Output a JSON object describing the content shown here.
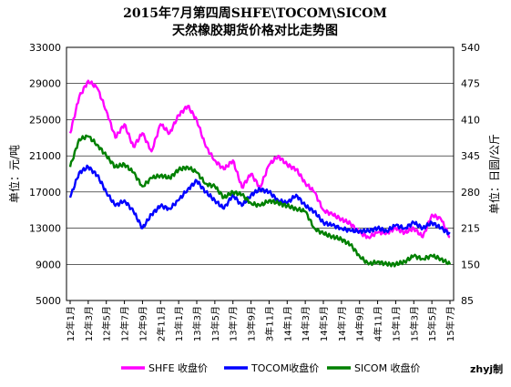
{
  "chart_data": {
    "type": "line",
    "title": "2015年7月第四周SHFE\\TOCOM\\SICOM",
    "subtitle": "天然橡胶期货价格对比走势图",
    "ylabel_left": "单位：元/吨",
    "ylabel_right": "单位：日圆/公斤",
    "ylim_left": [
      5000,
      33000
    ],
    "yticks_left": [
      "5000",
      "9000",
      "13000",
      "17000",
      "21000",
      "25000",
      "29000",
      "33000"
    ],
    "ylim_right": [
      85,
      540
    ],
    "yticks_right": [
      "85",
      "150",
      "215",
      "280",
      "345",
      "410",
      "475",
      "540"
    ],
    "x_categories": [
      "12年1月",
      "12年3月",
      "12年5月",
      "12年7月",
      "12年9月",
      "2年11月",
      "13年1月",
      "13年3月",
      "13年5月",
      "13年7月",
      "13年9月",
      "3年11月",
      "14年1月",
      "14年3月",
      "14年5月",
      "14年7月",
      "14年9月",
      "4年11月",
      "15年1月",
      "15年3月",
      "15年5月",
      "15年7月"
    ],
    "grid": true,
    "legend_position": "bottom",
    "series": [
      {
        "name": "SHFE 收盘价",
        "axis": "left",
        "color": "#ff00ff",
        "x": [
          0,
          0.5,
          1,
          1.5,
          2,
          2.5,
          3,
          3.5,
          4,
          4.5,
          5,
          5.5,
          6,
          6.5,
          7,
          7.5,
          8,
          8.5,
          9,
          9.5,
          10,
          10.5,
          11,
          11.5,
          12,
          12.5,
          13,
          13.5,
          14,
          14.5,
          15,
          15.5,
          16,
          16.5,
          17,
          17.5,
          18,
          18.5,
          19,
          19.5,
          20,
          20.5,
          21
        ],
        "values": [
          23500,
          27500,
          29300,
          28500,
          26000,
          23000,
          24500,
          22000,
          23500,
          21500,
          24500,
          23500,
          25500,
          26500,
          25000,
          22000,
          20500,
          19500,
          20500,
          17500,
          19000,
          17500,
          20000,
          21000,
          20000,
          19500,
          18000,
          17000,
          15000,
          14500,
          14000,
          13500,
          12500,
          12000,
          12500,
          12500,
          13000,
          12500,
          13000,
          12000,
          14500,
          14000,
          12000
        ]
      },
      {
        "name": "TOCOM收盘价",
        "axis": "right",
        "color": "#0000ff",
        "x": [
          0,
          0.5,
          1,
          1.5,
          2,
          2.5,
          3,
          3.5,
          4,
          4.5,
          5,
          5.5,
          6,
          6.5,
          7,
          7.5,
          8,
          8.5,
          9,
          9.5,
          10,
          10.5,
          11,
          11.5,
          12,
          12.5,
          13,
          13.5,
          14,
          14.5,
          15,
          15.5,
          16,
          16.5,
          17,
          17.5,
          18,
          18.5,
          19,
          19.5,
          20,
          20.5,
          21
        ],
        "values": [
          270,
          315,
          325,
          310,
          280,
          255,
          265,
          245,
          215,
          240,
          255,
          250,
          265,
          285,
          300,
          280,
          265,
          250,
          275,
          255,
          275,
          285,
          280,
          265,
          260,
          275,
          255,
          245,
          225,
          220,
          215,
          210,
          210,
          210,
          215,
          210,
          220,
          215,
          225,
          215,
          225,
          215,
          205
        ]
      },
      {
        "name": "SICOM 收盘价",
        "axis": "right",
        "color": "#008000",
        "x": [
          0,
          0.5,
          1,
          1.5,
          2,
          2.5,
          3,
          3.5,
          4,
          4.5,
          5,
          5.5,
          6,
          6.5,
          7,
          7.5,
          8,
          8.5,
          9,
          9.5,
          10,
          10.5,
          11,
          11.5,
          12,
          12.5,
          13,
          13.5,
          14,
          14.5,
          15,
          15.5,
          16,
          16.5,
          17,
          17.5,
          18,
          18.5,
          19,
          19.5,
          20,
          20.5,
          21
        ],
        "values": [
          325,
          375,
          380,
          365,
          345,
          325,
          330,
          315,
          290,
          305,
          310,
          305,
          320,
          325,
          315,
          295,
          290,
          270,
          280,
          275,
          260,
          255,
          265,
          260,
          255,
          250,
          245,
          215,
          205,
          200,
          195,
          185,
          165,
          150,
          155,
          150,
          150,
          155,
          165,
          160,
          165,
          160,
          150
        ]
      }
    ],
    "credit": "zhyj制"
  }
}
